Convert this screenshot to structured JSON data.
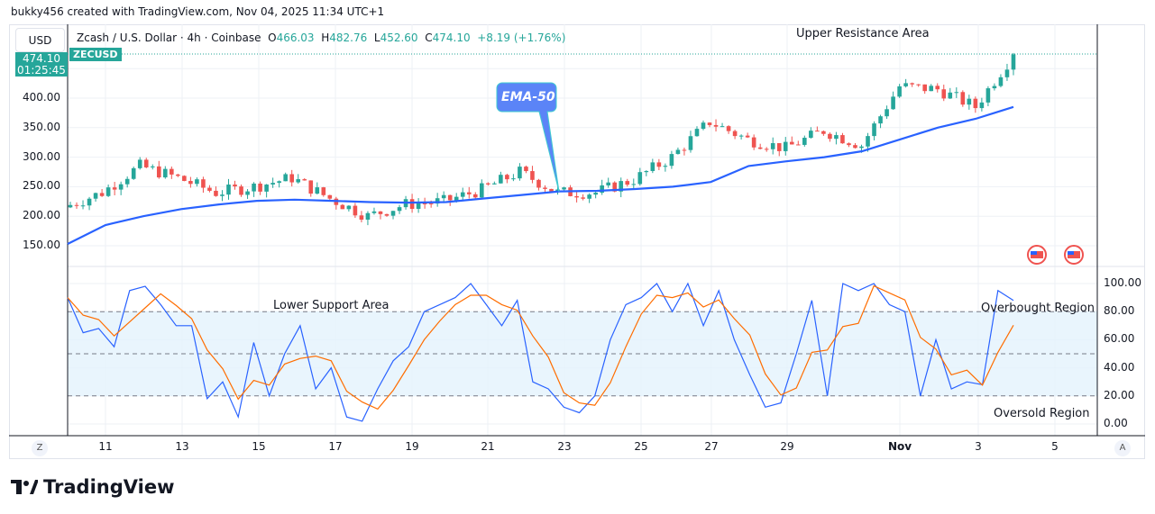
{
  "credit": "bukky456 created with TradingView.com, Nov 04, 2025 11:34 UTC+1",
  "legend": {
    "title": "Zcash / U.S. Dollar · 4h · Coinbase",
    "o_label": "O",
    "o": "466.03",
    "h_label": "H",
    "h": "482.76",
    "l_label": "L",
    "l": "452.60",
    "c_label": "C",
    "c": "474.10",
    "change": "+8.19 (+1.76%)"
  },
  "currency": "USD",
  "symbol_tag": "ZECUSD",
  "price_tag": {
    "price": "474.10",
    "countdown": "01:25:45"
  },
  "price_axis": [
    "400.00",
    "350.00",
    "300.00",
    "250.00",
    "200.00",
    "150.00"
  ],
  "rsi_axis": [
    "100.00",
    "80.00",
    "60.00",
    "40.00",
    "20.00",
    "0.00"
  ],
  "time_axis": [
    "11",
    "13",
    "15",
    "17",
    "19",
    "21",
    "23",
    "25",
    "27",
    "29",
    "Nov",
    "3",
    "5"
  ],
  "annotations": {
    "upper": "Upper Resistance Area",
    "lower": "Lower Support Area",
    "overbought": "Overbought Region",
    "oversold": "Oversold Region",
    "ema": "EMA-50"
  },
  "scale_buttons": {
    "left": "Z",
    "right": "A"
  },
  "brand": "TradingView",
  "colors": {
    "up": "#26a69a",
    "down": "#ef5350",
    "ema": "#2962ff",
    "k": "#2962ff",
    "d": "#ff6d00",
    "band": "#e3f2fd"
  },
  "chart_data": {
    "type": "candlestick",
    "price_range": [
      130,
      480
    ],
    "closes": [
      {
        "date": "Oct 10",
        "close": 215
      },
      {
        "date": "Oct 11",
        "close": 240
      },
      {
        "date": "Oct 12",
        "close": 285
      },
      {
        "date": "Oct 13",
        "close": 265
      },
      {
        "date": "Oct 14",
        "close": 240
      },
      {
        "date": "Oct 15",
        "close": 250
      },
      {
        "date": "Oct 16",
        "close": 265
      },
      {
        "date": "Oct 17",
        "close": 230
      },
      {
        "date": "Oct 18",
        "close": 200
      },
      {
        "date": "Oct 19",
        "close": 220
      },
      {
        "date": "Oct 20",
        "close": 225
      },
      {
        "date": "Oct 21",
        "close": 245
      },
      {
        "date": "Oct 22",
        "close": 275
      },
      {
        "date": "Oct 23",
        "close": 240
      },
      {
        "date": "Oct 24",
        "close": 240
      },
      {
        "date": "Oct 25",
        "close": 262
      },
      {
        "date": "Oct 26",
        "close": 300
      },
      {
        "date": "Oct 27",
        "close": 360
      },
      {
        "date": "Oct 28",
        "close": 330
      },
      {
        "date": "Oct 29",
        "close": 315
      },
      {
        "date": "Oct 30",
        "close": 345
      },
      {
        "date": "Oct 31",
        "close": 320
      },
      {
        "date": "Nov 1",
        "close": 420
      },
      {
        "date": "Nov 2",
        "close": 415
      },
      {
        "date": "Nov 3",
        "close": 385
      },
      {
        "date": "Nov 4",
        "close": 474
      }
    ],
    "ema50": [
      153,
      185,
      200,
      212,
      220,
      226,
      228,
      226,
      224,
      223,
      224,
      230,
      236,
      242,
      243,
      246,
      250,
      258,
      285,
      293,
      300,
      310,
      330,
      350,
      365,
      385
    ],
    "stoch_k": [
      90,
      65,
      68,
      55,
      95,
      98,
      85,
      70,
      70,
      18,
      30,
      5,
      58,
      20,
      50,
      70,
      25,
      40,
      5,
      2,
      25,
      45,
      55,
      80,
      85,
      90,
      100,
      85,
      70,
      88,
      30,
      25,
      12,
      8,
      20,
      60,
      85,
      90,
      100,
      80,
      100,
      70,
      95,
      60,
      35,
      12,
      15,
      50,
      88,
      20,
      100,
      95,
      100,
      85,
      80,
      20,
      60,
      25,
      30,
      28,
      95,
      88
    ],
    "stoch_levels": [
      80,
      50,
      20
    ]
  }
}
